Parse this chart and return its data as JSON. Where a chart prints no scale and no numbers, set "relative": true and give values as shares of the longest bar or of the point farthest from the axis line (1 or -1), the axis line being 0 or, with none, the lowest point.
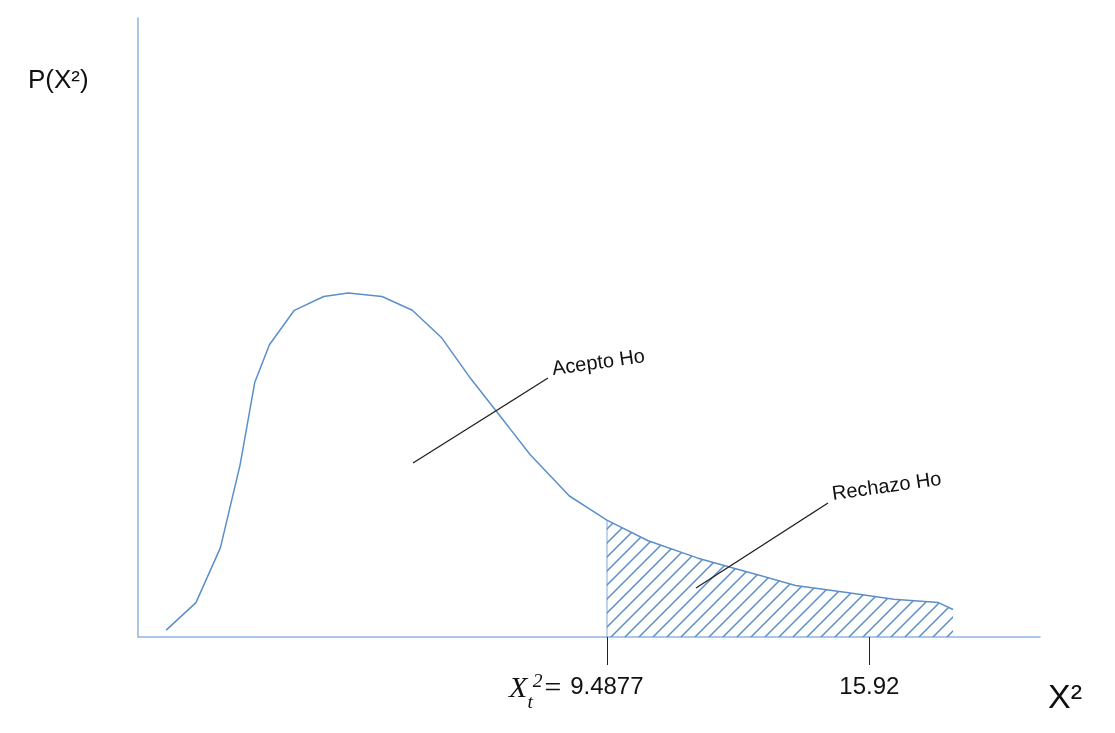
{
  "chart_data": {
    "type": "line",
    "relative": true,
    "xlabel": "X²",
    "xlim": [
      -2,
      20.1
    ],
    "xticks": [
      9.4877,
      15.92
    ],
    "tick_labels": "x",
    "grid": false,
    "marker": "none",
    "line_style": "solid",
    "ref_lines": [
      {
        "axis": "x",
        "value": 9.4877,
        "label": "X$_{t}$$^{2}$=",
        "color": "#5b8fc9"
      }
    ],
    "series": [
      {
        "color": "#5b8fc9",
        "x": [
          -1.31,
          -0.58,
          0.02,
          0.5,
          0.86,
          1.22,
          1.83,
          2.55,
          3.15,
          3.98,
          4.72,
          5.44,
          6.16,
          6.89,
          7.61,
          8.57,
          9.4877,
          10.5,
          11.7,
          12.91,
          14.11,
          15.32,
          16.52,
          17.61,
          17.97
        ],
        "values": [
          0.02,
          0.1,
          0.26,
          0.5,
          0.74,
          0.85,
          0.95,
          0.99,
          1,
          0.99,
          0.95,
          0.87,
          0.75,
          0.64,
          0.53,
          0.41,
          0.34,
          0.28,
          0.23,
          0.19,
          0.15,
          0.13,
          0.11,
          0.1,
          0.08
        ]
      },
      {
        "type": "area",
        "color": "#5b8fc9",
        "x": [
          9.4877,
          10.5,
          11.7,
          12.91,
          14.11,
          15.32,
          16.52,
          17.61,
          17.97
        ],
        "values": [
          0.34,
          0.28,
          0.23,
          0.19,
          0.15,
          0.13,
          0.11,
          0.1,
          0.08
        ]
      }
    ],
    "annotations": [
      "P(X²)",
      "Acepto Ho",
      "Rechazo Ho"
    ]
  }
}
